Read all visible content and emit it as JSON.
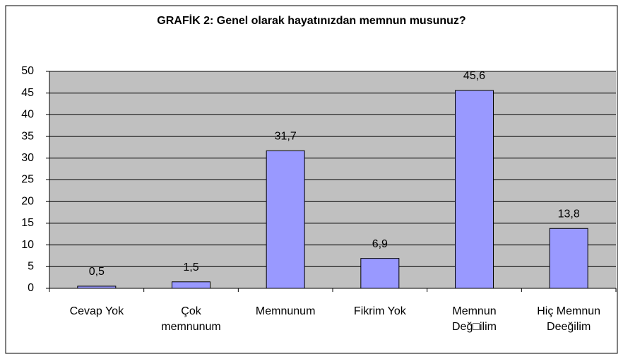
{
  "chart_data": {
    "type": "bar",
    "title": "GRAFİK 2: Genel olarak hayatınızdan memnun musunuz?",
    "categories": [
      "Cevap Yok",
      "Çok\nmemnunum",
      "Memnunum",
      "Fikrim Yok",
      "Memnun\nDeğ□ilim",
      "Hiç Memnun\nDeeğilim"
    ],
    "values": [
      0.5,
      1.5,
      31.7,
      6.9,
      45.6,
      13.8
    ],
    "value_labels": [
      "0,5",
      "1,5",
      "31,7",
      "6,9",
      "45,6",
      "13,8"
    ],
    "color": "#9999ff",
    "ylim": [
      0,
      50
    ],
    "yticks": [
      0,
      5,
      10,
      15,
      20,
      25,
      30,
      35,
      40,
      45,
      50
    ],
    "grid": true
  }
}
